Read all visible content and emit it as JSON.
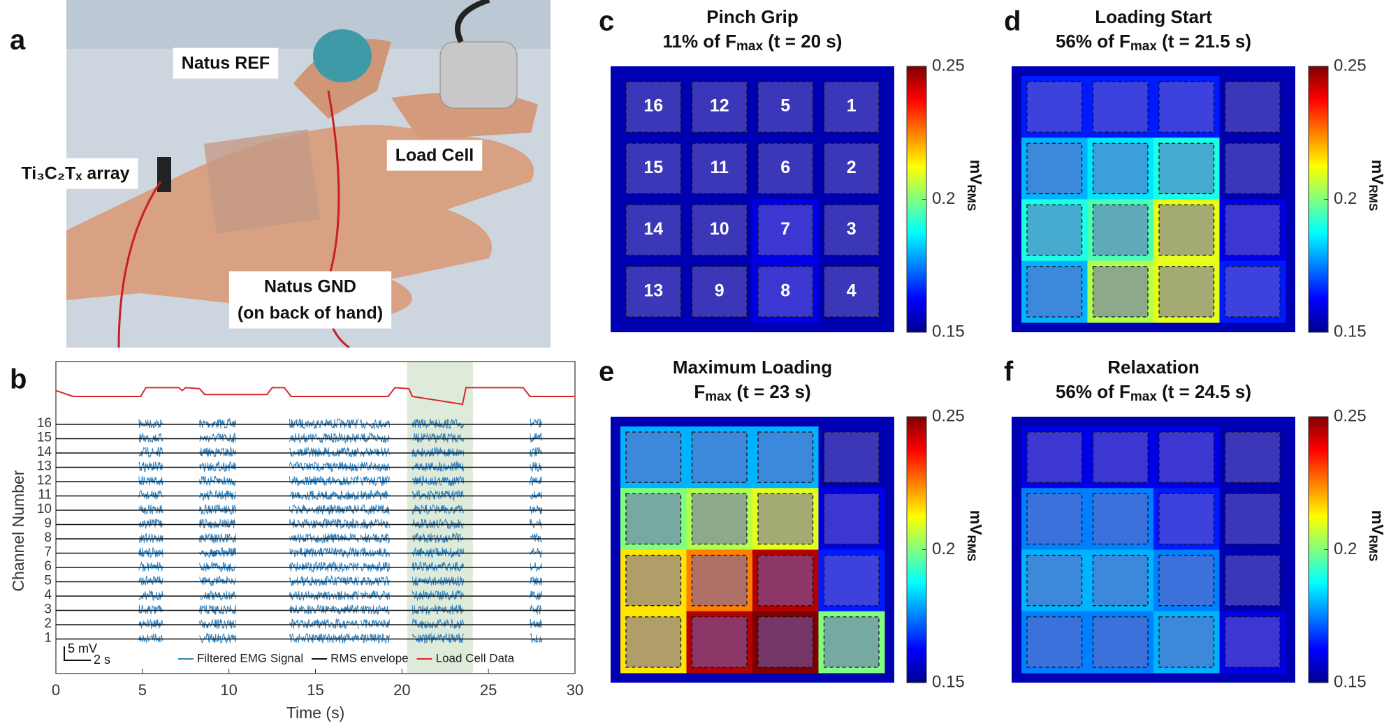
{
  "panel_a": {
    "label": "a",
    "annotations": [
      "Natus REF",
      "Ti₃C₂Tₓ array",
      "Load Cell",
      "Natus GND",
      "(on back of hand)"
    ]
  },
  "panel_b": {
    "label": "b",
    "type": "line",
    "xlabel": "Time (s)",
    "ylabel": "Channel Number",
    "xlim": [
      0,
      30
    ],
    "xticks": [
      0,
      5,
      10,
      15,
      20,
      25,
      30
    ],
    "channels": [
      16,
      15,
      14,
      13,
      12,
      11,
      10,
      9,
      8,
      7,
      6,
      5,
      4,
      3,
      2,
      1
    ],
    "legend": [
      {
        "name": "Filtered EMG Signal",
        "color": "#2f84c4"
      },
      {
        "name": "RMS envelope",
        "color": "#111111"
      },
      {
        "name": "Load Cell Data",
        "color": "#d9262c"
      }
    ],
    "scale_bar": [
      "5 mV",
      "2 s"
    ],
    "highlight": [
      20.3,
      24.1
    ],
    "bursts": [
      [
        4.8,
        6.2
      ],
      [
        8.3,
        10.4
      ],
      [
        13.5,
        17.5
      ],
      [
        17.6,
        19.3
      ],
      [
        20.6,
        23.6
      ],
      [
        27.4,
        28.1
      ]
    ],
    "load_cell": {
      "x": [
        0,
        1,
        4.9,
        5.2,
        7.1,
        7.3,
        7.5,
        8.3,
        8.6,
        12.2,
        12.5,
        13.2,
        13.6,
        19.2,
        19.6,
        20.4,
        20.6,
        23.5,
        23.7,
        27.0,
        27.4,
        30
      ],
      "values": [
        0.8,
        0.5,
        0.5,
        0.95,
        0.95,
        0.8,
        0.95,
        0.9,
        0.6,
        0.6,
        0.95,
        0.95,
        0.5,
        0.5,
        0.95,
        0.9,
        0.5,
        0.1,
        0.95,
        0.95,
        0.5,
        0.5
      ]
    }
  },
  "heatmaps": [
    {
      "label": "c",
      "title": "Pinch Grip",
      "subtitle": [
        "11% of F",
        "max",
        " (t = 20 s)"
      ],
      "clim": [
        0.15,
        0.25
      ],
      "cticks": [
        0.15,
        0.2,
        0.25
      ],
      "colorbar_label": [
        "mV",
        "RMS"
      ],
      "channel_labels": [
        [
          16,
          12,
          5,
          1
        ],
        [
          15,
          11,
          6,
          2
        ],
        [
          14,
          10,
          7,
          3
        ],
        [
          13,
          9,
          8,
          4
        ]
      ],
      "values": [
        [
          0.155,
          0.155,
          0.155,
          0.155
        ],
        [
          0.155,
          0.155,
          0.155,
          0.155
        ],
        [
          0.155,
          0.155,
          0.16,
          0.155
        ],
        [
          0.155,
          0.155,
          0.16,
          0.155
        ]
      ]
    },
    {
      "label": "d",
      "title": "Loading Start",
      "subtitle": [
        "56% of F",
        "max",
        " (t = 21.5 s)"
      ],
      "clim": [
        0.15,
        0.25
      ],
      "cticks": [
        0.15,
        0.2,
        0.25
      ],
      "colorbar_label": [
        "mV",
        "RMS"
      ],
      "values": [
        [
          0.165,
          0.165,
          0.165,
          0.155
        ],
        [
          0.18,
          0.185,
          0.19,
          0.155
        ],
        [
          0.19,
          0.195,
          0.21,
          0.16
        ],
        [
          0.18,
          0.205,
          0.21,
          0.165
        ]
      ]
    },
    {
      "label": "e",
      "title": "Maximum Loading",
      "subtitle": [
        "F",
        "max",
        " (t = 23 s)"
      ],
      "clim": [
        0.15,
        0.25
      ],
      "cticks": [
        0.15,
        0.2,
        0.25
      ],
      "colorbar_label": [
        "mV",
        "RMS"
      ],
      "values": [
        [
          0.18,
          0.18,
          0.18,
          0.155
        ],
        [
          0.2,
          0.205,
          0.21,
          0.16
        ],
        [
          0.215,
          0.225,
          0.245,
          0.165
        ],
        [
          0.215,
          0.245,
          0.25,
          0.2
        ]
      ]
    },
    {
      "label": "f",
      "title": "Relaxation",
      "subtitle": [
        "56% of F",
        "max",
        " (t = 24.5 s)"
      ],
      "clim": [
        0.15,
        0.25
      ],
      "cticks": [
        0.15,
        0.2,
        0.25
      ],
      "colorbar_label": [
        "mV",
        "RMS"
      ],
      "values": [
        [
          0.16,
          0.16,
          0.16,
          0.155
        ],
        [
          0.175,
          0.175,
          0.165,
          0.155
        ],
        [
          0.18,
          0.18,
          0.175,
          0.155
        ],
        [
          0.175,
          0.175,
          0.18,
          0.16
        ]
      ]
    }
  ]
}
